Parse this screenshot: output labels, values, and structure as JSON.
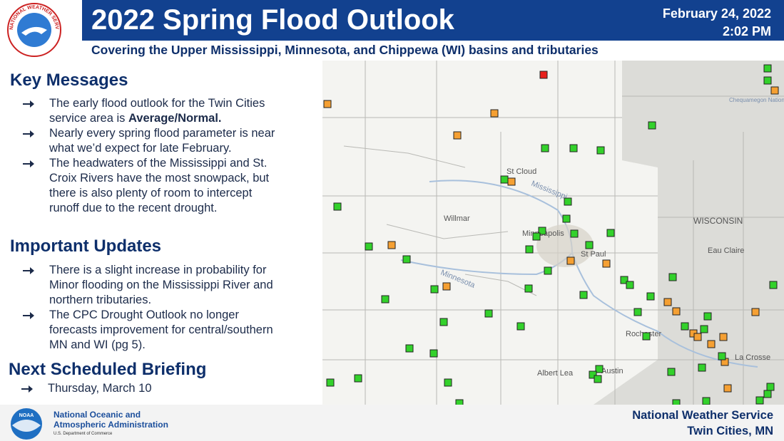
{
  "header": {
    "title": "2022 Spring Flood Outlook",
    "date": "February 24, 2022",
    "time": "2:02 PM",
    "subtitle": "Covering the Upper Mississippi, Minnesota, and Chippewa (WI) basins and tributaries",
    "logo_text": "NATIONAL WEATHER SERVICE"
  },
  "key_messages": {
    "heading": "Key Messages",
    "items": [
      {
        "text": "The early flood outlook for the Twin Cities service area is ",
        "bold": "Average/Normal."
      },
      {
        "text": "Nearly every spring flood parameter is near what we’d expect for late February."
      },
      {
        "text": "The headwaters of the Mississippi and St. Croix Rivers have the most snowpack, but there is also plenty of room to intercept runoff due to the recent drought."
      }
    ]
  },
  "important_updates": {
    "heading": "Important Updates",
    "items": [
      {
        "text": "There is a slight increase in probability for Minor flooding on the Mississippi River and northern tributaries."
      },
      {
        "text": "The CPC Drought Outlook no longer forecasts improvement for central/southern MN and WI (pg 5)."
      }
    ]
  },
  "next_briefing": {
    "heading": "Next Scheduled Briefing",
    "items": [
      {
        "text": "Thursday, March 10"
      }
    ]
  },
  "map": {
    "labels": [
      "St Cloud",
      "Willmar",
      "Minneapolis",
      "St Paul",
      "WISCONSIN",
      "Eau Claire",
      "Rochester",
      "Albert Lea",
      "Austin",
      "La Crosse",
      "Mississippi",
      "Minnesota",
      "Chequamegon National Forest"
    ]
  },
  "footer": {
    "noaa_logo": "NOAA",
    "agency_line1": "National Oceanic and",
    "agency_line2": "Atmospheric Administration",
    "department": "U.S. Department of Commerce",
    "office_line1": "National Weather Service",
    "office_line2": "Twin Cities, MN"
  }
}
